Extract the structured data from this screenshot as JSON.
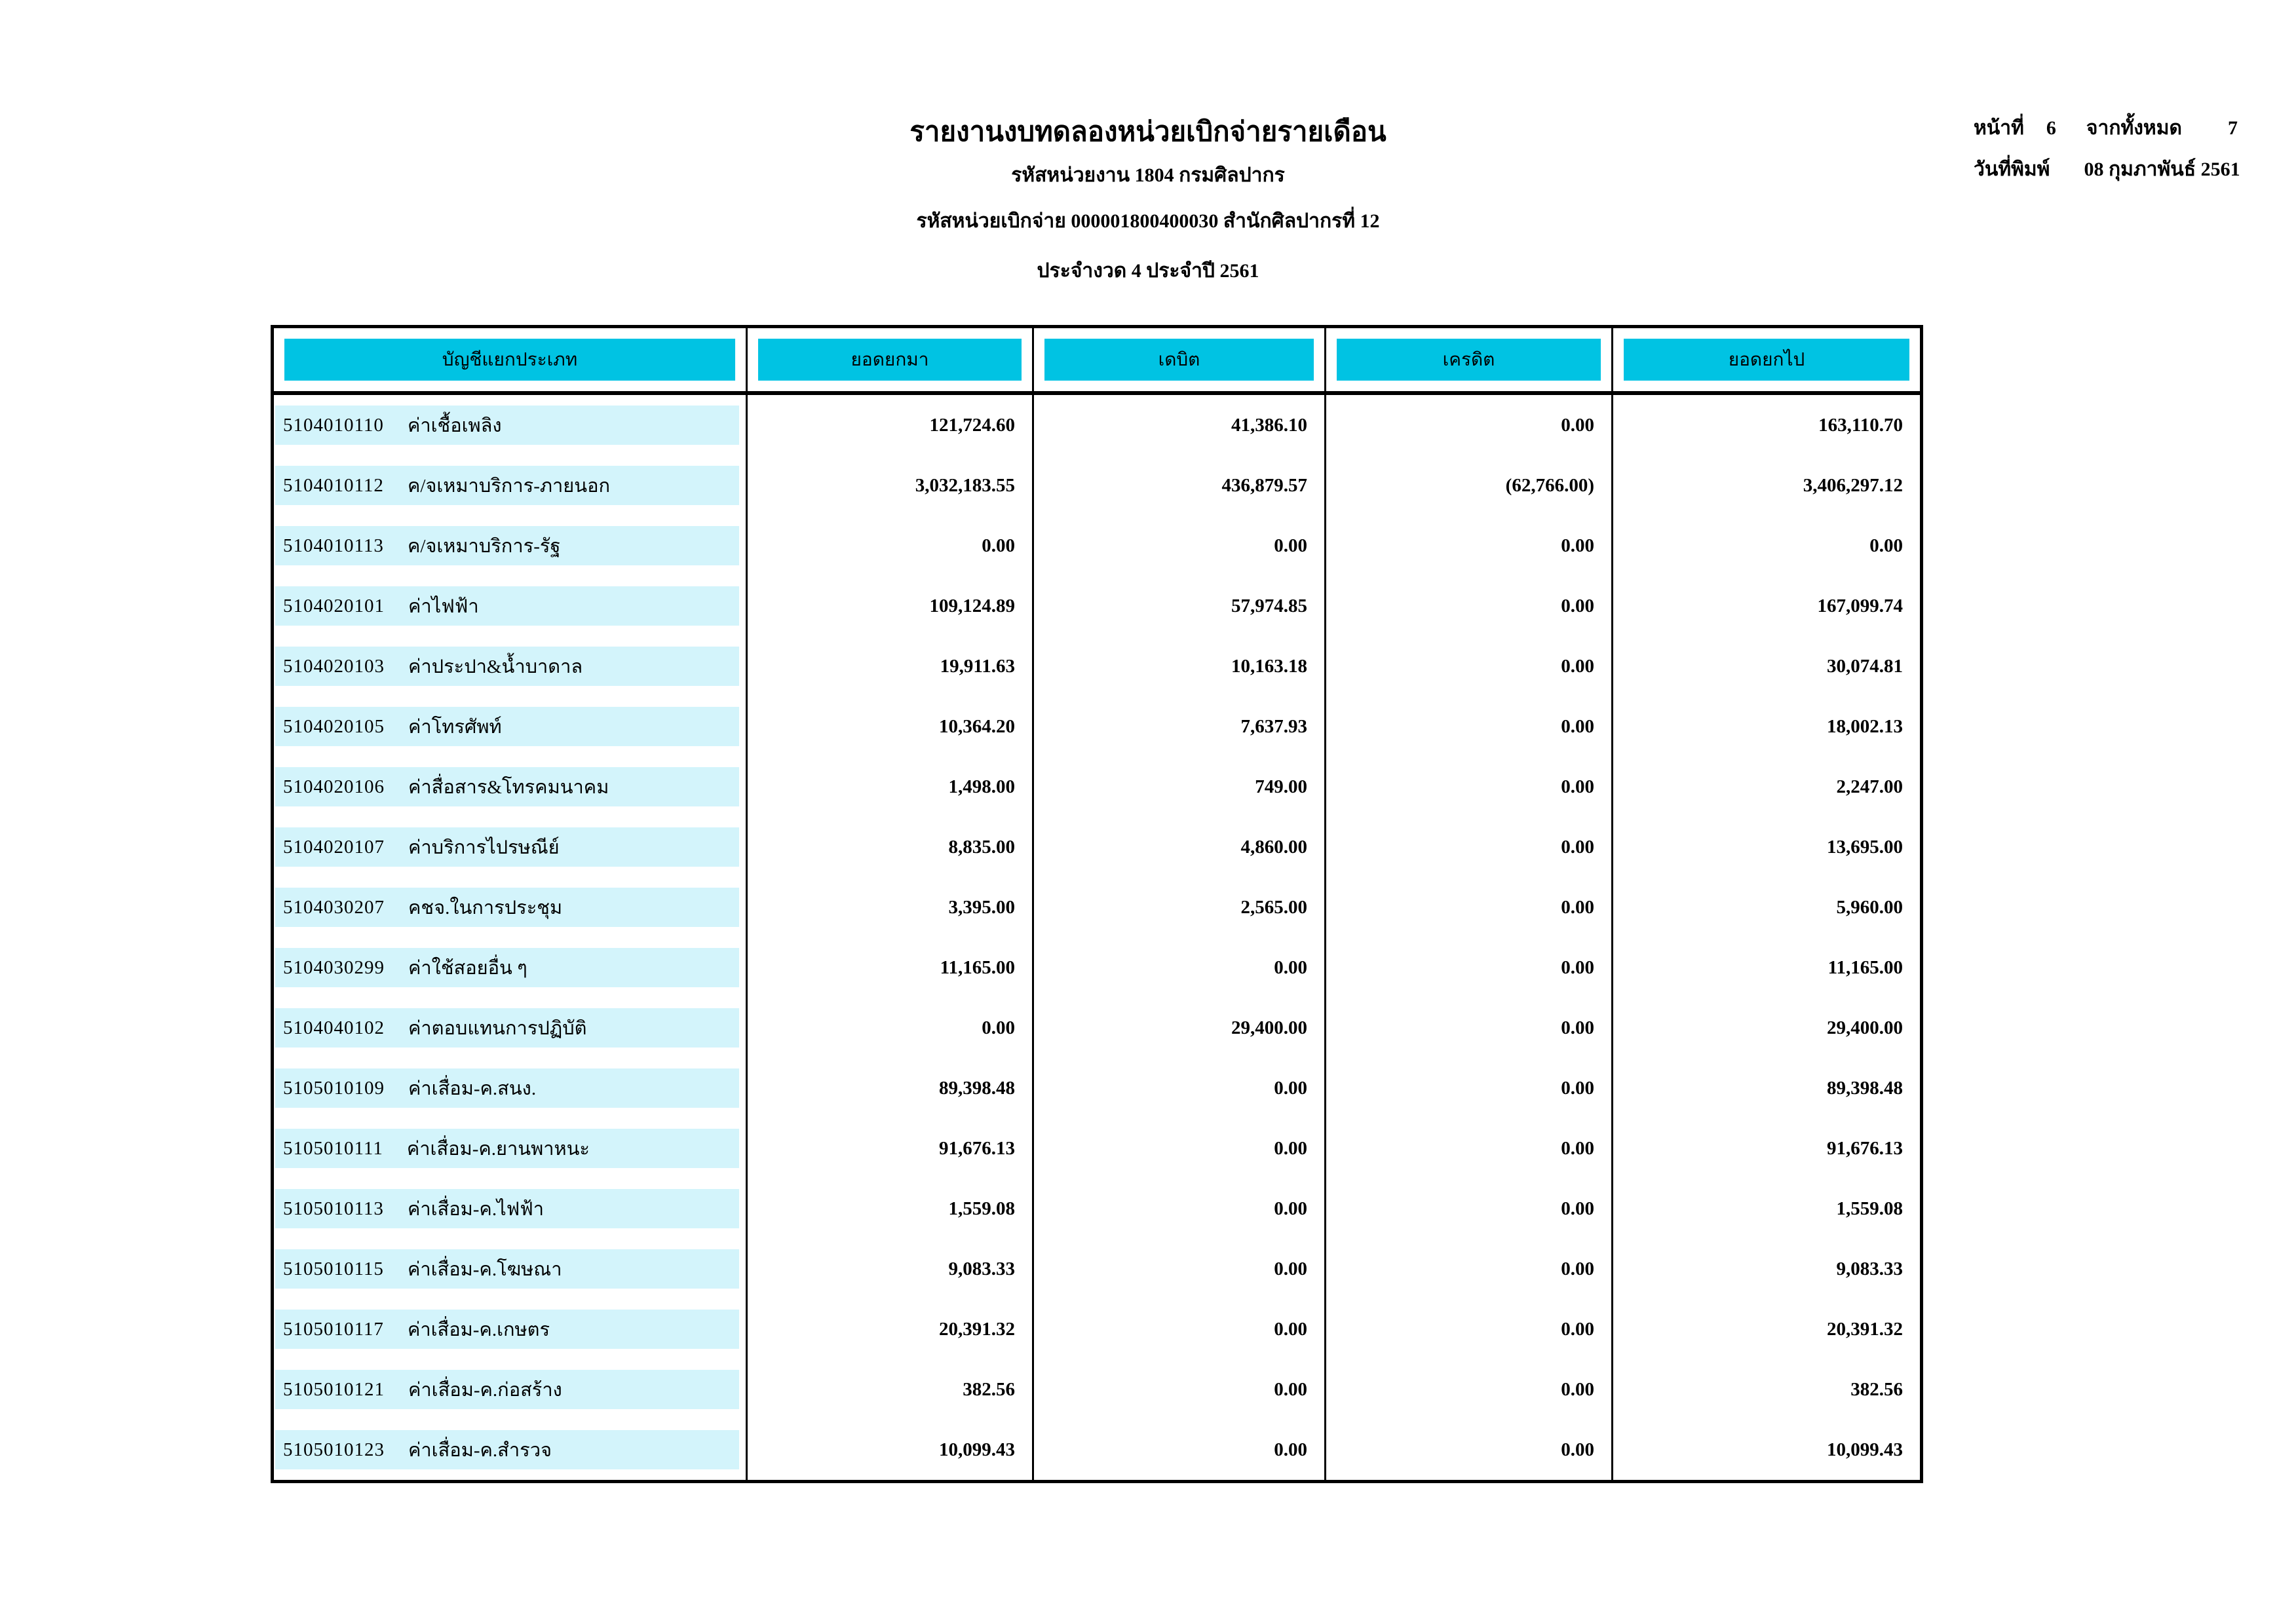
{
  "page": {
    "title": "รายงานงบทดลองหน่วยเบิกจ่ายรายเดือน",
    "org_line": "รหัสหน่วยงาน 1804 กรมศิลปากร",
    "unit_line": "รหัสหน่วยเบิกจ่าย 000001800400030 สำนักศิลปากรที่ 12",
    "period_line": "ประจำงวด 4 ประจำปี 2561",
    "page_label": "หน้าที่",
    "page_number": "6",
    "total_label": "จากทั้งหมด",
    "total_pages": "7",
    "print_date_label": "วันที่พิมพ์",
    "print_date": "08 กุมภาพันธ์ 2561"
  },
  "colors": {
    "header_cyan": "#00C3E3",
    "row_band_cyan": "#D3F4FB",
    "border_black": "#000000"
  },
  "table": {
    "headers": [
      "บัญชีแยกประเภท",
      "ยอดยกมา",
      "เดบิต",
      "เครดิต",
      "ยอดยกไป"
    ],
    "rows": [
      {
        "code": "5104010110",
        "name": "ค่าเชื้อเพลิง",
        "brought_forward": "121,724.60",
        "debit": "41,386.10",
        "credit": "0.00",
        "carried_forward": "163,110.70"
      },
      {
        "code": "5104010112",
        "name": "ค/จเหมาบริการ-ภายนอก",
        "brought_forward": "3,032,183.55",
        "debit": "436,879.57",
        "credit": "(62,766.00)",
        "carried_forward": "3,406,297.12"
      },
      {
        "code": "5104010113",
        "name": "ค/จเหมาบริการ-รัฐ",
        "brought_forward": "0.00",
        "debit": "0.00",
        "credit": "0.00",
        "carried_forward": "0.00"
      },
      {
        "code": "5104020101",
        "name": "ค่าไฟฟ้า",
        "brought_forward": "109,124.89",
        "debit": "57,974.85",
        "credit": "0.00",
        "carried_forward": "167,099.74"
      },
      {
        "code": "5104020103",
        "name": "ค่าประปา&น้ำบาดาล",
        "brought_forward": "19,911.63",
        "debit": "10,163.18",
        "credit": "0.00",
        "carried_forward": "30,074.81"
      },
      {
        "code": "5104020105",
        "name": "ค่าโทรศัพท์",
        "brought_forward": "10,364.20",
        "debit": "7,637.93",
        "credit": "0.00",
        "carried_forward": "18,002.13"
      },
      {
        "code": "5104020106",
        "name": "ค่าสื่อสาร&โทรคมนาคม",
        "brought_forward": "1,498.00",
        "debit": "749.00",
        "credit": "0.00",
        "carried_forward": "2,247.00"
      },
      {
        "code": "5104020107",
        "name": "ค่าบริการไปรษณีย์",
        "brought_forward": "8,835.00",
        "debit": "4,860.00",
        "credit": "0.00",
        "carried_forward": "13,695.00"
      },
      {
        "code": "5104030207",
        "name": "คชจ.ในการประชุม",
        "brought_forward": "3,395.00",
        "debit": "2,565.00",
        "credit": "0.00",
        "carried_forward": "5,960.00"
      },
      {
        "code": "5104030299",
        "name": "ค่าใช้สอยอื่น ๆ",
        "brought_forward": "11,165.00",
        "debit": "0.00",
        "credit": "0.00",
        "carried_forward": "11,165.00"
      },
      {
        "code": "5104040102",
        "name": "ค่าตอบแทนการปฏิบัติ",
        "brought_forward": "0.00",
        "debit": "29,400.00",
        "credit": "0.00",
        "carried_forward": "29,400.00"
      },
      {
        "code": "5105010109",
        "name": "ค่าเสื่อม-ค.สนง.",
        "brought_forward": "89,398.48",
        "debit": "0.00",
        "credit": "0.00",
        "carried_forward": "89,398.48"
      },
      {
        "code": "5105010111",
        "name": "ค่าเสื่อม-ค.ยานพาหนะ",
        "brought_forward": "91,676.13",
        "debit": "0.00",
        "credit": "0.00",
        "carried_forward": "91,676.13"
      },
      {
        "code": "5105010113",
        "name": "ค่าเสื่อม-ค.ไฟฟ้า",
        "brought_forward": "1,559.08",
        "debit": "0.00",
        "credit": "0.00",
        "carried_forward": "1,559.08"
      },
      {
        "code": "5105010115",
        "name": "ค่าเสื่อม-ค.โฆษณา",
        "brought_forward": "9,083.33",
        "debit": "0.00",
        "credit": "0.00",
        "carried_forward": "9,083.33"
      },
      {
        "code": "5105010117",
        "name": "ค่าเสื่อม-ค.เกษตร",
        "brought_forward": "20,391.32",
        "debit": "0.00",
        "credit": "0.00",
        "carried_forward": "20,391.32"
      },
      {
        "code": "5105010121",
        "name": "ค่าเสื่อม-ค.ก่อสร้าง",
        "brought_forward": "382.56",
        "debit": "0.00",
        "credit": "0.00",
        "carried_forward": "382.56"
      },
      {
        "code": "5105010123",
        "name": "ค่าเสื่อม-ค.สำรวจ",
        "brought_forward": "10,099.43",
        "debit": "0.00",
        "credit": "0.00",
        "carried_forward": "10,099.43"
      }
    ]
  }
}
